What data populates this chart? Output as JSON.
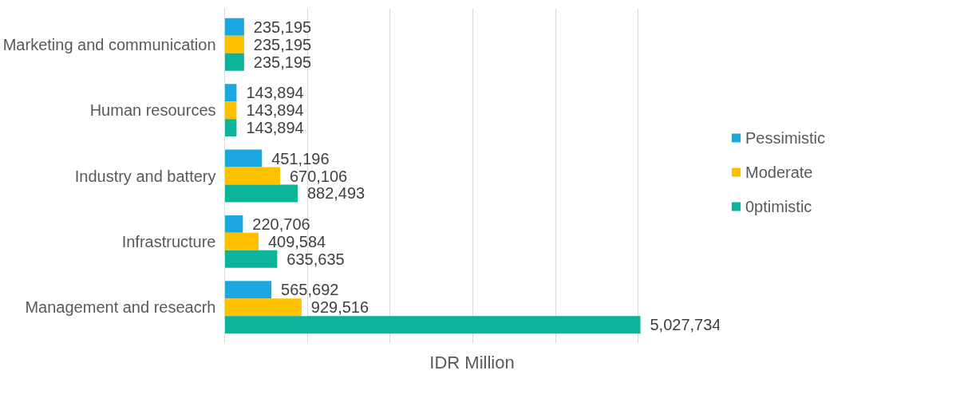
{
  "chart_data": {
    "type": "bar",
    "orientation": "horizontal",
    "xlabel": "IDR Million",
    "categories": [
      "Marketing and communication",
      "Human resources",
      "Industry and battery",
      "Infrastructure",
      "Management and reseacrh"
    ],
    "series": [
      {
        "name": "Pessimistic",
        "color": "#1ba8e0",
        "values": [
          235195,
          143894,
          451196,
          220706,
          565692
        ],
        "value_labels": [
          "235,195",
          "143,894",
          "451,196",
          "220,706",
          "565,692"
        ]
      },
      {
        "name": "Moderate",
        "color": "#ffc000",
        "values": [
          235195,
          143894,
          670106,
          409584,
          929516
        ],
        "value_labels": [
          "235,195",
          "143,894",
          "670,106",
          "409,584",
          "929,516"
        ]
      },
      {
        "name": "0ptimistic",
        "color": "#0db39a",
        "values": [
          235195,
          143894,
          882493,
          635635,
          5027734
        ],
        "value_labels": [
          "235,195",
          "143,894",
          "882,493",
          "635,635",
          "5,027,734"
        ]
      }
    ],
    "tick_labels": "y",
    "grid": "x",
    "legend": "right"
  }
}
